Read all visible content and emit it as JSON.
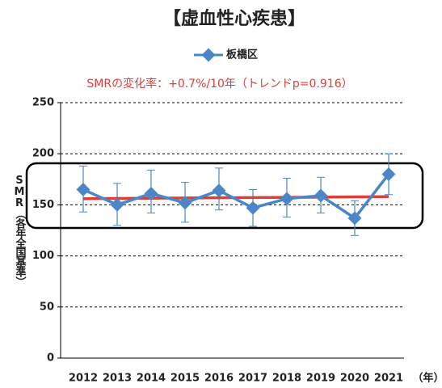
{
  "chart_data": {
    "type": "line",
    "title": "【虚血性心疾患】",
    "annotation": "SMRの変化率：+0.7%/10年（トレンドp=0.916）",
    "y_label": "SMR（各年全国基準）",
    "x_label": "（年）",
    "categories": [
      "2012",
      "2013",
      "2014",
      "2015",
      "2016",
      "2017",
      "2018",
      "2019",
      "2020",
      "2021"
    ],
    "series": [
      {
        "name": "板橋区",
        "color": "#4a86c8",
        "values": [
          165,
          150,
          161,
          152,
          164,
          147,
          156,
          159,
          137,
          180
        ],
        "lower": [
          143,
          130,
          142,
          133,
          145,
          129,
          138,
          142,
          120,
          160
        ],
        "upper": [
          188,
          171,
          184,
          172,
          186,
          165,
          176,
          177,
          154,
          200
        ]
      }
    ],
    "trend_line": {
      "color": "#d9403a",
      "values": [
        156,
        158
      ]
    },
    "ylim": [
      0,
      250
    ],
    "yticks": [
      0,
      50,
      100,
      150,
      200,
      250
    ],
    "grid": true
  }
}
